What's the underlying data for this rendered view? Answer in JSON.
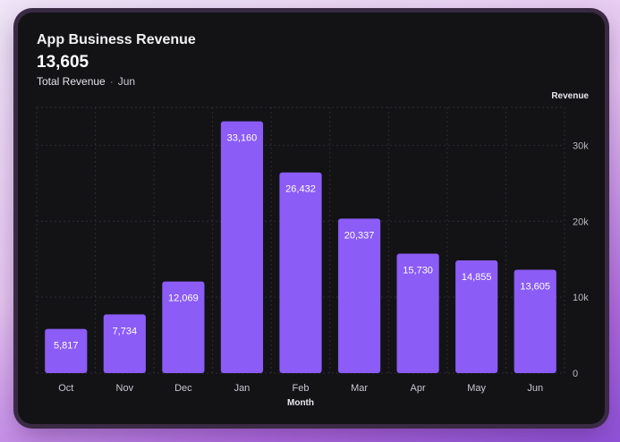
{
  "header": {
    "title": "App Business Revenue",
    "total": "13,605",
    "total_label": "Total Revenue",
    "separator": "·",
    "period": "Jun"
  },
  "colors": {
    "bar": "#8b5cf6",
    "card_background": "#131316",
    "grid": "#2c2c33"
  },
  "chart_data": {
    "type": "bar",
    "title": "App Business Revenue",
    "xlabel": "Month",
    "ylabel": "Revenue",
    "categories": [
      "Oct",
      "Nov",
      "Dec",
      "Jan",
      "Feb",
      "Mar",
      "Apr",
      "May",
      "Jun"
    ],
    "values": [
      5817,
      7734,
      12069,
      33160,
      26432,
      20337,
      15730,
      14855,
      13605
    ],
    "data_labels": [
      "5,817",
      "7,734",
      "12,069",
      "33,160",
      "26,432",
      "20,337",
      "15,730",
      "14,855",
      "13,605"
    ],
    "ylim": [
      0,
      35000
    ],
    "yticks": [
      0,
      10000,
      20000,
      30000
    ],
    "ytick_labels": [
      "0",
      "10k",
      "20k",
      "30k"
    ],
    "y_axis_side": "right",
    "grid": true
  }
}
